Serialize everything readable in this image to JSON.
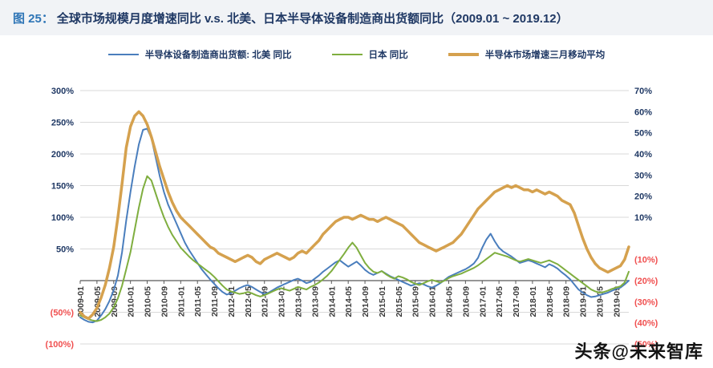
{
  "figure": {
    "tag": "图 25：",
    "title": "全球市场规模月度增速同比 v.s. 北美、日本半导体设备制造商出货额同比（2009.01 ~ 2019.12）"
  },
  "watermark": "头条@未来智库",
  "colors": {
    "figure_tag": "#2e75b6",
    "figure_title": "#1f3864",
    "positive_label": "#1f3864",
    "negative_label": "#f05050",
    "gridline": "#d9d9d9",
    "axis_line": "#595959",
    "watermark": "#141414"
  },
  "chart_data": {
    "type": "line",
    "title": "全球市场规模月度增速同比 v.s. 北美、日本半导体设备制造商出货额同比",
    "x_start": "2009-01",
    "x_end": "2019-12",
    "points_per_series": 132,
    "x_tick_every_months": 4,
    "x_tick_labels": [
      "2009-01",
      "2009-05",
      "2009-09",
      "2010-01",
      "2010-05",
      "2010-09",
      "2011-01",
      "2011-05",
      "2011-09",
      "2012-01",
      "2012-05",
      "2012-09",
      "2013-01",
      "2013-05",
      "2013-09",
      "2014-01",
      "2014-05",
      "2014-09",
      "2015-01",
      "2015-05",
      "2015-09",
      "2016-01",
      "2016-05",
      "2016-09",
      "2017-01",
      "2017-05",
      "2017-09",
      "2018-01",
      "2018-05",
      "2018-09",
      "2019-01",
      "2019-05",
      "2019-09"
    ],
    "grid": true,
    "legend_position": "top",
    "left_axis": {
      "min": -100,
      "max": 300,
      "tick_step": 50,
      "tick_labels": [
        "300%",
        "250%",
        "200%",
        "150%",
        "100%",
        "50%",
        "",
        "(50%)",
        "(100%)"
      ]
    },
    "right_axis": {
      "min": -50,
      "max": 70,
      "tick_step": 10,
      "tick_labels": [
        "70%",
        "60%",
        "50%",
        "40%",
        "30%",
        "20%",
        "10%",
        "",
        "(10%)",
        "(20%)",
        "(30%)",
        "(40%)",
        "(50%)"
      ]
    },
    "series": [
      {
        "key": "north-america",
        "name": "半导体设备制造商出货额: 北美 同比",
        "axis": "left",
        "color": "#4a7ebd",
        "width": 2,
        "values": [
          -58,
          -62,
          -65,
          -66,
          -63,
          -55,
          -45,
          -32,
          -15,
          8,
          45,
          95,
          140,
          180,
          215,
          238,
          240,
          225,
          195,
          165,
          140,
          120,
          105,
          90,
          75,
          60,
          48,
          38,
          28,
          18,
          10,
          2,
          -5,
          -12,
          -18,
          -22,
          -20,
          -16,
          -12,
          -9,
          -7,
          -10,
          -14,
          -18,
          -21,
          -19,
          -15,
          -11,
          -8,
          -5,
          -2,
          1,
          3,
          0,
          -4,
          -2,
          3,
          8,
          14,
          19,
          24,
          29,
          32,
          27,
          22,
          26,
          30,
          24,
          17,
          12,
          9,
          12,
          15,
          11,
          7,
          4,
          1,
          -2,
          -5,
          -8,
          -6,
          -4,
          -6,
          -9,
          -11,
          -8,
          -4,
          1,
          6,
          9,
          12,
          15,
          18,
          22,
          27,
          36,
          52,
          65,
          74,
          62,
          52,
          46,
          42,
          38,
          33,
          28,
          30,
          32,
          30,
          27,
          24,
          21,
          26,
          23,
          19,
          13,
          8,
          2,
          -6,
          -14,
          -19,
          -23,
          -26,
          -25,
          -23,
          -21,
          -19,
          -16,
          -13,
          -11,
          -6,
          0
        ]
      },
      {
        "key": "japan",
        "name": "日本 同比",
        "axis": "left",
        "color": "#7fae3f",
        "width": 2,
        "values": [
          -55,
          -58,
          -61,
          -63,
          -64,
          -62,
          -58,
          -52,
          -42,
          -28,
          -8,
          18,
          45,
          80,
          115,
          145,
          165,
          158,
          138,
          118,
          100,
          85,
          72,
          62,
          52,
          45,
          38,
          32,
          27,
          22,
          17,
          12,
          6,
          -1,
          -8,
          -14,
          -17,
          -19,
          -21,
          -20,
          -18,
          -20,
          -23,
          -25,
          -23,
          -20,
          -17,
          -14,
          -12,
          -14,
          -16,
          -13,
          -10,
          -12,
          -14,
          -10,
          -7,
          -3,
          2,
          8,
          15,
          24,
          33,
          42,
          52,
          60,
          52,
          40,
          28,
          20,
          14,
          12,
          15,
          10,
          6,
          3,
          7,
          5,
          2,
          -2,
          -5,
          -7,
          -4,
          -1,
          1,
          -1,
          -3,
          0,
          4,
          7,
          9,
          11,
          14,
          17,
          20,
          24,
          29,
          34,
          39,
          44,
          42,
          40,
          38,
          35,
          32,
          30,
          32,
          34,
          32,
          30,
          28,
          30,
          32,
          29,
          26,
          21,
          16,
          11,
          6,
          1,
          -4,
          -9,
          -14,
          -17,
          -19,
          -18,
          -16,
          -13,
          -11,
          -9,
          -3,
          14
        ]
      },
      {
        "key": "market-3mma",
        "name": "半导体市场增速三月移动平均",
        "axis": "right",
        "color": "#d5a14e",
        "width": 3.5,
        "values": [
          -35,
          -37,
          -38,
          -36,
          -33,
          -28,
          -22,
          -14,
          -4,
          10,
          26,
          43,
          53,
          58,
          60,
          58,
          54,
          48,
          41,
          34,
          28,
          22,
          17,
          13,
          10,
          8,
          6,
          4,
          2,
          0,
          -2,
          -4,
          -5,
          -7,
          -8,
          -9,
          -10,
          -11,
          -10,
          -9,
          -8,
          -9,
          -11,
          -12,
          -10,
          -9,
          -8,
          -7,
          -8,
          -9,
          -10,
          -9,
          -7,
          -6,
          -7,
          -5,
          -3,
          -1,
          2,
          4,
          6,
          8,
          9,
          10,
          10,
          9,
          10,
          11,
          10,
          9,
          9,
          8,
          9,
          10,
          9,
          8,
          7,
          6,
          4,
          2,
          0,
          -2,
          -3,
          -4,
          -5,
          -6,
          -5,
          -4,
          -3,
          -2,
          0,
          2,
          5,
          8,
          11,
          14,
          16,
          18,
          20,
          22,
          23,
          24,
          25,
          24,
          25,
          24,
          23,
          23,
          22,
          23,
          22,
          21,
          22,
          21,
          20,
          18,
          17,
          16,
          12,
          6,
          0,
          -5,
          -9,
          -12,
          -14,
          -15,
          -16,
          -15,
          -14,
          -13,
          -10,
          -4
        ]
      }
    ]
  }
}
